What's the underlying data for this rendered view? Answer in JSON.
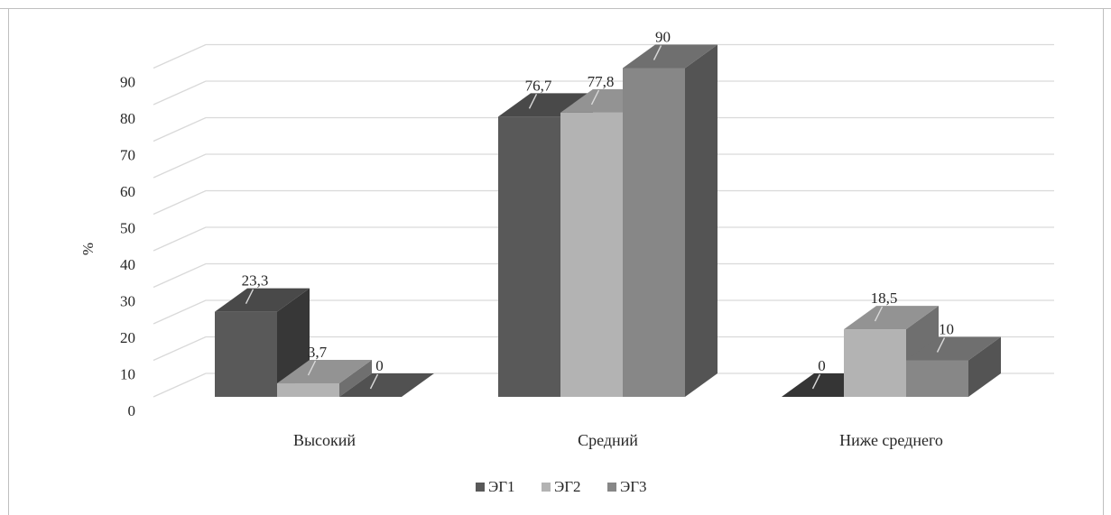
{
  "chart_data": {
    "type": "bar",
    "title": "",
    "xlabel": "",
    "ylabel": "%",
    "ylim": [
      0,
      90
    ],
    "yticks": [
      0,
      10,
      20,
      30,
      40,
      50,
      60,
      70,
      80,
      90
    ],
    "categories": [
      "Высокий",
      "Средний",
      "Ниже среднего"
    ],
    "series": [
      {
        "name": "ЭГ1",
        "values": [
          23.3,
          76.7,
          0
        ],
        "labels": [
          "23,3",
          "76,7",
          "0"
        ],
        "color": "#595959"
      },
      {
        "name": "ЭГ2",
        "values": [
          3.7,
          77.8,
          18.5
        ],
        "labels": [
          "3,7",
          "77,8",
          "18,5"
        ],
        "color": "#b3b3b3"
      },
      {
        "name": "ЭГ3",
        "values": [
          0,
          90,
          10
        ],
        "labels": [
          "0",
          "90",
          "10"
        ],
        "color": "#878787"
      }
    ],
    "grid": true,
    "legend": "bottom",
    "style": "3d-clustered-column"
  }
}
